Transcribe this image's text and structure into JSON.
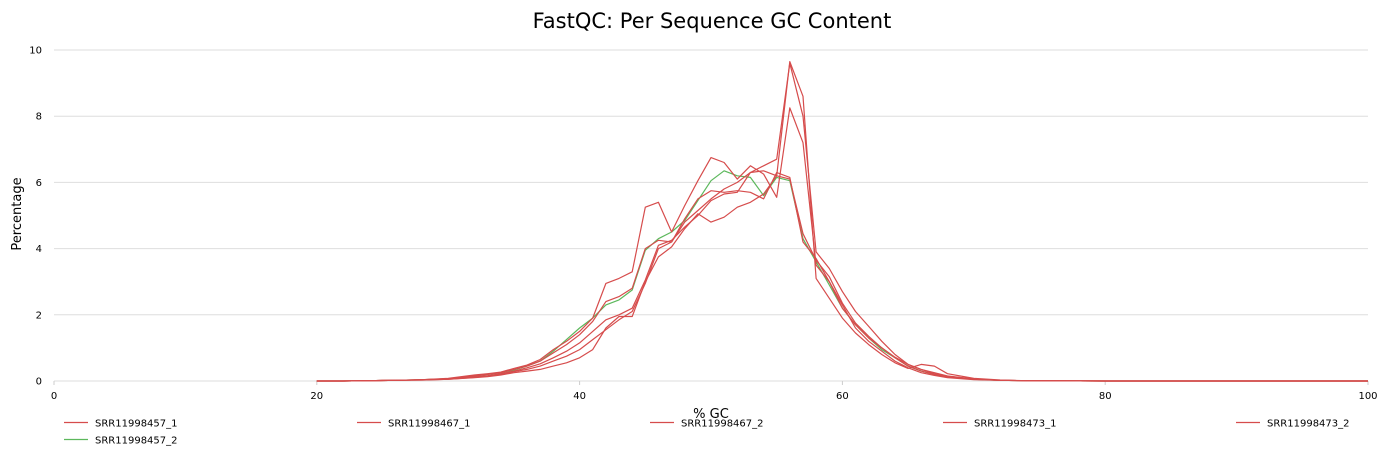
{
  "chart_data": {
    "type": "line",
    "title": "FastQC: Per Sequence GC Content",
    "xlabel": "% GC",
    "ylabel": "Percentage",
    "xlim": [
      0,
      100
    ],
    "ylim": [
      0,
      10
    ],
    "xticks": [
      0,
      20,
      40,
      60,
      80,
      100
    ],
    "yticks": [
      0,
      2,
      4,
      6,
      8,
      10
    ],
    "grid": "horizontal",
    "legend_position": "bottom",
    "series": [
      {
        "name": "SRR11998457_1",
        "color": "#d64c4c",
        "x": [
          20,
          22,
          24,
          26,
          28,
          30,
          32,
          33,
          34,
          35,
          36,
          37,
          38,
          39,
          40,
          41,
          42,
          43,
          44,
          45,
          46,
          47,
          48,
          49,
          50,
          51,
          52,
          53,
          54,
          55,
          56,
          57,
          58,
          59,
          60,
          61,
          62,
          63,
          64,
          65,
          66,
          67,
          68,
          70,
          72,
          74,
          80,
          100
        ],
        "y": [
          0,
          0,
          0.01,
          0.02,
          0.04,
          0.07,
          0.15,
          0.2,
          0.25,
          0.35,
          0.45,
          0.6,
          0.85,
          1.1,
          1.4,
          1.8,
          2.4,
          2.55,
          2.8,
          4.0,
          4.25,
          4.2,
          4.9,
          5.5,
          5.75,
          5.7,
          5.75,
          5.7,
          5.5,
          6.3,
          6.15,
          4.2,
          3.7,
          3.0,
          2.2,
          1.7,
          1.3,
          1.0,
          0.7,
          0.45,
          0.3,
          0.2,
          0.12,
          0.05,
          0.02,
          0.01,
          0,
          0
        ]
      },
      {
        "name": "SRR11998467_1",
        "color": "#d64c4c",
        "x": [
          20,
          22,
          24,
          26,
          28,
          30,
          32,
          33,
          34,
          35,
          36,
          37,
          38,
          39,
          40,
          41,
          42,
          43,
          44,
          45,
          46,
          47,
          48,
          49,
          50,
          51,
          52,
          53,
          54,
          55,
          56,
          57,
          58,
          59,
          60,
          61,
          62,
          63,
          64,
          65,
          66,
          67,
          68,
          70,
          72,
          74,
          80,
          100
        ],
        "y": [
          0,
          0,
          0.01,
          0.02,
          0.04,
          0.08,
          0.18,
          0.22,
          0.27,
          0.38,
          0.48,
          0.65,
          0.95,
          1.2,
          1.5,
          1.9,
          2.95,
          3.1,
          3.3,
          5.25,
          5.4,
          4.5,
          5.3,
          6.05,
          6.75,
          6.6,
          6.1,
          6.5,
          6.25,
          5.55,
          8.25,
          7.2,
          3.5,
          3.0,
          2.3,
          1.6,
          1.2,
          0.9,
          0.6,
          0.4,
          0.25,
          0.17,
          0.1,
          0.04,
          0.02,
          0.01,
          0,
          0
        ]
      },
      {
        "name": "SRR11998467_2",
        "color": "#d64c4c",
        "x": [
          20,
          22,
          24,
          26,
          28,
          30,
          32,
          33,
          34,
          35,
          36,
          37,
          38,
          39,
          40,
          41,
          42,
          43,
          44,
          45,
          46,
          47,
          48,
          49,
          50,
          51,
          52,
          53,
          54,
          55,
          56,
          57,
          58,
          59,
          60,
          61,
          62,
          63,
          64,
          65,
          66,
          67,
          68,
          70,
          72,
          74,
          80,
          100
        ],
        "y": [
          0,
          0,
          0.01,
          0.02,
          0.04,
          0.06,
          0.12,
          0.16,
          0.22,
          0.3,
          0.4,
          0.52,
          0.7,
          0.9,
          1.15,
          1.5,
          1.85,
          2.0,
          2.2,
          3.05,
          4.1,
          4.25,
          4.65,
          5.0,
          5.45,
          5.65,
          5.7,
          6.3,
          6.35,
          6.2,
          6.1,
          4.45,
          3.65,
          3.15,
          2.35,
          1.75,
          1.35,
          1.0,
          0.72,
          0.5,
          0.35,
          0.22,
          0.14,
          0.06,
          0.02,
          0.01,
          0,
          0
        ]
      },
      {
        "name": "SRR11998473_1",
        "color": "#d64c4c",
        "x": [
          20,
          22,
          24,
          26,
          28,
          30,
          32,
          33,
          34,
          35,
          36,
          37,
          38,
          39,
          40,
          41,
          42,
          43,
          44,
          45,
          46,
          47,
          48,
          49,
          50,
          51,
          52,
          53,
          54,
          55,
          56,
          57,
          58,
          59,
          60,
          61,
          62,
          63,
          64,
          65,
          66,
          67,
          68,
          70,
          72,
          74,
          80,
          100
        ],
        "y": [
          0,
          0,
          0.01,
          0.02,
          0.03,
          0.05,
          0.1,
          0.13,
          0.18,
          0.25,
          0.3,
          0.35,
          0.45,
          0.55,
          0.7,
          0.95,
          1.6,
          1.95,
          1.95,
          3.0,
          3.75,
          4.05,
          4.6,
          5.05,
          4.8,
          4.95,
          5.25,
          5.4,
          5.65,
          6.2,
          9.65,
          8.6,
          3.1,
          2.5,
          1.9,
          1.45,
          1.1,
          0.8,
          0.55,
          0.38,
          0.5,
          0.45,
          0.22,
          0.08,
          0.03,
          0.01,
          0,
          0
        ]
      },
      {
        "name": "SRR11998473_2",
        "color": "#d64c4c",
        "x": [
          20,
          22,
          24,
          26,
          28,
          30,
          32,
          33,
          34,
          35,
          36,
          37,
          38,
          39,
          40,
          41,
          42,
          43,
          44,
          45,
          46,
          47,
          48,
          49,
          50,
          51,
          52,
          53,
          54,
          55,
          56,
          57,
          58,
          59,
          60,
          61,
          62,
          63,
          64,
          65,
          66,
          67,
          68,
          70,
          72,
          74,
          80,
          100
        ],
        "y": [
          0,
          0,
          0.01,
          0.02,
          0.03,
          0.05,
          0.11,
          0.15,
          0.2,
          0.28,
          0.35,
          0.45,
          0.6,
          0.75,
          0.95,
          1.25,
          1.55,
          1.85,
          2.1,
          2.95,
          4.0,
          4.2,
          4.8,
          5.15,
          5.5,
          5.8,
          6.0,
          6.3,
          6.5,
          6.7,
          9.6,
          8.0,
          3.9,
          3.4,
          2.7,
          2.1,
          1.65,
          1.2,
          0.8,
          0.5,
          0.35,
          0.25,
          0.15,
          0.06,
          0.02,
          0.01,
          0,
          0
        ]
      },
      {
        "name": "SRR11998457_2",
        "color": "#5cb85c",
        "x": [
          20,
          22,
          24,
          26,
          28,
          30,
          32,
          33,
          34,
          35,
          36,
          37,
          38,
          39,
          40,
          41,
          42,
          43,
          44,
          45,
          46,
          47,
          48,
          49,
          50,
          51,
          52,
          53,
          54,
          55,
          56,
          57,
          58,
          59,
          60,
          61,
          62,
          63,
          64,
          65,
          66,
          67,
          68,
          70,
          72,
          74,
          80,
          100
        ],
        "y": [
          0,
          0,
          0.01,
          0.02,
          0.04,
          0.07,
          0.15,
          0.2,
          0.25,
          0.33,
          0.45,
          0.6,
          0.9,
          1.25,
          1.6,
          1.9,
          2.3,
          2.45,
          2.75,
          3.95,
          4.3,
          4.5,
          4.85,
          5.45,
          6.05,
          6.35,
          6.2,
          6.15,
          5.6,
          6.15,
          6.05,
          4.3,
          3.6,
          2.9,
          2.2,
          1.7,
          1.3,
          0.95,
          0.7,
          0.45,
          0.3,
          0.2,
          0.12,
          0.05,
          0.02,
          0.01,
          0,
          0
        ]
      }
    ],
    "legend": [
      "SRR11998457_1",
      "SRR11998467_1",
      "SRR11998467_2",
      "SRR11998473_1",
      "SRR11998473_2",
      "SRR11998457_2"
    ]
  }
}
